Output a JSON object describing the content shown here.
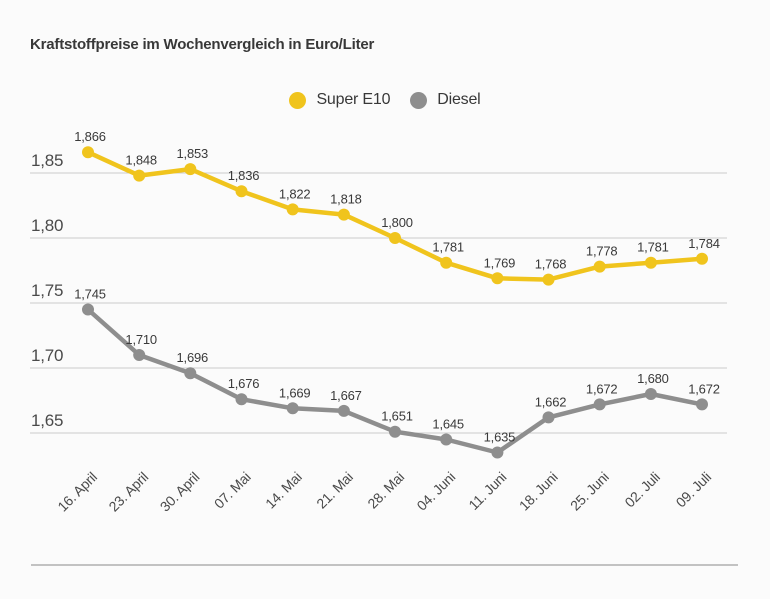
{
  "page": {
    "background": "#FBFBFB"
  },
  "title": "Kraftstoffpreise im Wochenvergleich in Euro/Liter",
  "legend": [
    {
      "label": "Super E10",
      "color": "#F0C41D"
    },
    {
      "label": "Diesel",
      "color": "#8E8E8E"
    }
  ],
  "chart_data": {
    "type": "line",
    "title": "Kraftstoffpreise im Wochenvergleich in Euro/Liter",
    "categories": [
      "16. April",
      "23. April",
      "30. April",
      "07. Mai",
      "14. Mai",
      "21. Mai",
      "28. Mai",
      "04. Juni",
      "11. Juni",
      "18. Juni",
      "25. Juni",
      "02. Juli",
      "09. Juli"
    ],
    "series": [
      {
        "name": "Super E10",
        "color": "#F0C41D",
        "values": [
          1.866,
          1.848,
          1.853,
          1.836,
          1.822,
          1.818,
          1.8,
          1.781,
          1.769,
          1.768,
          1.778,
          1.781,
          1.784
        ],
        "labels": [
          "1,866",
          "1,848",
          "1,853",
          "1,836",
          "1,822",
          "1,818",
          "1,800",
          "1,781",
          "1,769",
          "1,768",
          "1,778",
          "1,781",
          "1,784"
        ]
      },
      {
        "name": "Diesel",
        "color": "#8E8E8E",
        "values": [
          1.745,
          1.71,
          1.696,
          1.676,
          1.669,
          1.667,
          1.651,
          1.645,
          1.635,
          1.662,
          1.672,
          1.68,
          1.672
        ],
        "labels": [
          "1,745",
          "1,710",
          "1,696",
          "1,676",
          "1,669",
          "1,667",
          "1,651",
          "1,645",
          "1,635",
          "1,662",
          "1,672",
          "1,680",
          "1,672"
        ]
      }
    ],
    "y_ticks": [
      {
        "value": 1.85,
        "label": "1,85"
      },
      {
        "value": 1.8,
        "label": "1,80"
      },
      {
        "value": 1.75,
        "label": "1,75"
      },
      {
        "value": 1.7,
        "label": "1,70"
      },
      {
        "value": 1.65,
        "label": "1,65"
      }
    ],
    "ylim": [
      1.62,
      1.88
    ],
    "xlabel": "",
    "ylabel": "Euro/Liter",
    "grid": true,
    "legend_position": "top-center",
    "grid_color": "#CBCBCB",
    "axis_text_color": "#4A4A4A",
    "value_label_color": "#3A3A3A",
    "divider_color": "#C2C2C2"
  }
}
